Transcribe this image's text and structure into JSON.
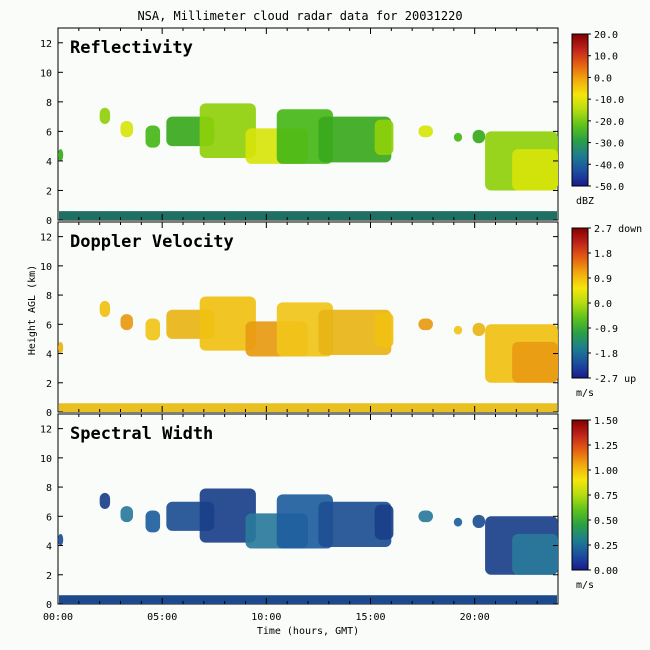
{
  "chart_data": {
    "type": "heatmap",
    "title": "NSA, Millimeter cloud radar data for 20031220",
    "xlabel": "Time (hours, GMT)",
    "ylabel": "Height AGL (km)",
    "xlim": [
      0,
      24
    ],
    "ylim": [
      0,
      13
    ],
    "x_ticks": [
      "00:00",
      "05:00",
      "10:00",
      "15:00",
      "20:00"
    ],
    "y_ticks": [
      "0",
      "2",
      "4",
      "6",
      "8",
      "10",
      "12"
    ],
    "panels": [
      {
        "title": "Reflectivity",
        "colorbar_ticks": [
          "20.0",
          "10.0",
          "0.0",
          "-10.0",
          "-20.0",
          "-30.0",
          "-40.0",
          "-50.0"
        ],
        "unit": "dBZ",
        "range": [
          -50,
          20
        ]
      },
      {
        "title": "Doppler Velocity",
        "colorbar_ticks": [
          "2.7 down",
          "1.8",
          "0.9",
          "0.0",
          "-0.9",
          "-1.8",
          "-2.7 up"
        ],
        "unit": "m/s",
        "range": [
          -2.7,
          2.7
        ]
      },
      {
        "title": "Spectral Width",
        "colorbar_ticks": [
          "1.50",
          "1.25",
          "1.00",
          "0.75",
          "0.50",
          "0.25",
          "0.00"
        ],
        "unit": "m/s",
        "range": [
          0,
          1.5
        ]
      }
    ]
  },
  "colors": {
    "background": "#f9fcf9",
    "colormap": [
      "#1a1a8c",
      "#1c4fa0",
      "#1f7d8f",
      "#2aa045",
      "#5ec21b",
      "#b5dd10",
      "#f5e60c",
      "#f2a90f",
      "#e55f12",
      "#c0231a",
      "#800000"
    ]
  }
}
